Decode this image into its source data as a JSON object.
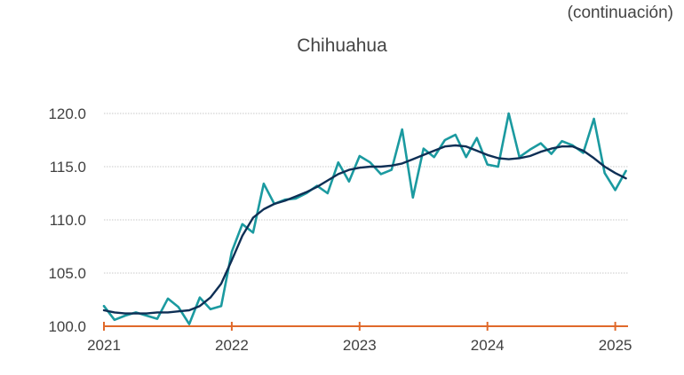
{
  "header": {
    "note": "(continuación)"
  },
  "chart_data": {
    "type": "line",
    "title": "Chihuahua",
    "xlabel": "",
    "ylabel": "",
    "ylim": [
      100,
      120
    ],
    "xlim": [
      2021.0,
      2025.1
    ],
    "y_ticks": [
      "100.0",
      "105.0",
      "110.0",
      "115.0",
      "120.0"
    ],
    "x_ticks": [
      "2021",
      "2022",
      "2023",
      "2024",
      "2025"
    ],
    "grid": true,
    "series": [
      {
        "color": "#1b9aa0",
        "x": [
          2021.0,
          2021.083,
          2021.167,
          2021.25,
          2021.333,
          2021.417,
          2021.5,
          2021.583,
          2021.667,
          2021.75,
          2021.833,
          2021.917,
          2022.0,
          2022.083,
          2022.167,
          2022.25,
          2022.333,
          2022.417,
          2022.5,
          2022.583,
          2022.667,
          2022.75,
          2022.833,
          2022.917,
          2023.0,
          2023.083,
          2023.167,
          2023.25,
          2023.333,
          2023.417,
          2023.5,
          2023.583,
          2023.667,
          2023.75,
          2023.833,
          2023.917,
          2024.0,
          2024.083,
          2024.167,
          2024.25,
          2024.333,
          2024.417,
          2024.5,
          2024.583,
          2024.667,
          2024.75,
          2024.833,
          2024.917,
          2025.0,
          2025.083
        ],
        "values": [
          101.9,
          100.6,
          101.0,
          101.3,
          101.0,
          100.7,
          102.6,
          101.8,
          100.2,
          102.7,
          101.6,
          101.9,
          107.0,
          109.6,
          108.8,
          113.4,
          111.5,
          111.9,
          112.0,
          112.5,
          113.2,
          112.5,
          115.4,
          113.6,
          116.0,
          115.4,
          114.3,
          114.7,
          118.5,
          112.1,
          116.7,
          115.9,
          117.5,
          118.0,
          115.9,
          117.7,
          115.2,
          115.0,
          120.0,
          115.9,
          116.6,
          117.2,
          116.2,
          117.4,
          117.0,
          116.3,
          119.5,
          114.4,
          112.8,
          114.6
        ]
      },
      {
        "color": "#0e2f55",
        "x": [
          2021.0,
          2021.083,
          2021.167,
          2021.25,
          2021.333,
          2021.417,
          2021.5,
          2021.583,
          2021.667,
          2021.75,
          2021.833,
          2021.917,
          2022.0,
          2022.083,
          2022.167,
          2022.25,
          2022.333,
          2022.417,
          2022.5,
          2022.583,
          2022.667,
          2022.75,
          2022.833,
          2022.917,
          2023.0,
          2023.083,
          2023.167,
          2023.25,
          2023.333,
          2023.417,
          2023.5,
          2023.583,
          2023.667,
          2023.75,
          2023.833,
          2023.917,
          2024.0,
          2024.083,
          2024.167,
          2024.25,
          2024.333,
          2024.417,
          2024.5,
          2024.583,
          2024.667,
          2024.75,
          2024.833,
          2024.917,
          2025.0,
          2025.083
        ],
        "values": [
          101.5,
          101.3,
          101.2,
          101.2,
          101.2,
          101.3,
          101.3,
          101.4,
          101.5,
          101.9,
          102.7,
          104.0,
          106.2,
          108.5,
          110.2,
          111.0,
          111.5,
          111.8,
          112.2,
          112.6,
          113.1,
          113.7,
          114.3,
          114.7,
          114.9,
          115.0,
          115.0,
          115.1,
          115.3,
          115.7,
          116.1,
          116.5,
          116.9,
          117.0,
          116.9,
          116.5,
          116.1,
          115.8,
          115.7,
          115.8,
          116.0,
          116.4,
          116.7,
          116.9,
          116.9,
          116.5,
          115.8,
          115.0,
          114.4,
          113.9
        ]
      }
    ]
  }
}
